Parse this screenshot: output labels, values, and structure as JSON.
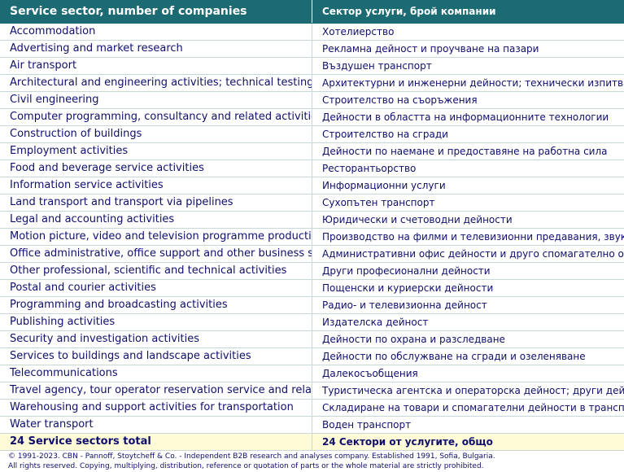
{
  "header": {
    "en": "Service sector, number of companies",
    "bg": "Сектор услуги, брой компании"
  },
  "rows": [
    {
      "en": "Accommodation",
      "bg": "Хотелиерство"
    },
    {
      "en": "Advertising and market research",
      "bg": "Рекламна дейност и проучване на пазари"
    },
    {
      "en": "Air transport",
      "bg": "Въздушен транспорт"
    },
    {
      "en": "Architectural and engineering activities; technical testing",
      "bg": "Архитектурни и инженерни дейности; технически изпитвания"
    },
    {
      "en": "Civil engineering",
      "bg": "Строителство на съоръжения"
    },
    {
      "en": "Computer programming, consultancy and related activities",
      "bg": "Дейности в областта на информационните технологии"
    },
    {
      "en": "Construction of buildings",
      "bg": "Строителство на сгради"
    },
    {
      "en": "Employment activities",
      "bg": "Дейности по наемане и предоставяне на работна сила"
    },
    {
      "en": "Food and beverage service activities",
      "bg": "Ресторантьорство"
    },
    {
      "en": "Information service activities",
      "bg": "Информационни услуги"
    },
    {
      "en": "Land transport and transport via pipelines",
      "bg": "Сухопътен транспорт"
    },
    {
      "en": "Legal and accounting activities",
      "bg": "Юридически и счетоводни дейности"
    },
    {
      "en": "Motion picture, video and television programme production",
      "bg": "Производство на филми и телевизионни предавания, звукозаписване"
    },
    {
      "en": "Office administrative, office support and other business support",
      "bg": "Административни офис дейности и друго спомагателно обслужване"
    },
    {
      "en": "Other professional, scientific and technical activities",
      "bg": "Други професионални дейности"
    },
    {
      "en": "Postal and courier activities",
      "bg": "Пощенски и куриерски дейности"
    },
    {
      "en": "Programming and broadcasting activities",
      "bg": "Радио- и телевизионна дейност"
    },
    {
      "en": "Publishing activities",
      "bg": "Издателска дейност"
    },
    {
      "en": "Security and investigation activities",
      "bg": "Дейности по охрана и разследване"
    },
    {
      "en": "Services to buildings and landscape activities",
      "bg": "Дейности по обслужване на сгради и озеленяване"
    },
    {
      "en": "Telecommunications",
      "bg": "Далекосъобщения"
    },
    {
      "en": "Travel agency, tour operator reservation service and related",
      "bg": "Туристическа агентска и операторска дейност; други дейности"
    },
    {
      "en": "Warehousing and support activities for transportation",
      "bg": "Складиране на товари и спомагателни дейности в транспорта"
    },
    {
      "en": "Water transport",
      "bg": "Воден транспорт"
    }
  ],
  "total": {
    "en": "24 Service sectors total",
    "bg": "24 Сектори от услугите, общо"
  },
  "footer": {
    "line1": "© 1991-2023. CBN - Pannoff, Stoytcheff & Co. - Independent B2B research and analyses company. Established 1991, Sofia, Bulgaria.",
    "line2": "All rights reserved. Copying, multiplying, distribution, reference or quotation of parts or the whole material are strictly prohibited."
  },
  "colors": {
    "header_bg": "#1c6b73",
    "text": "#0f0f6e",
    "total_bg": "#fefbd6",
    "grid": "#c8d8d8"
  }
}
